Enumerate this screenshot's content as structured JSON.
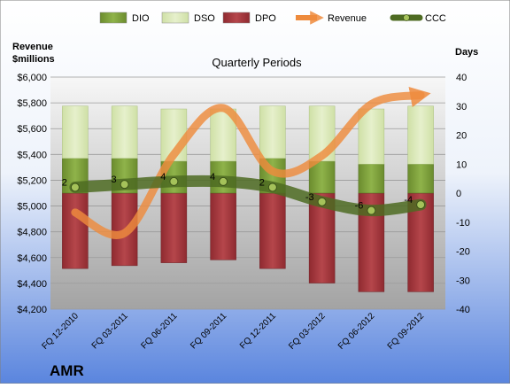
{
  "chart_data": {
    "type": "bar",
    "title": "Quarterly Periods",
    "company": "AMR",
    "left_axis_label": [
      "Revenue",
      "$millions"
    ],
    "right_axis_label": "Days",
    "left_axis": {
      "min": 4200,
      "max": 6000,
      "step": 200,
      "ticks": [
        "$4,200",
        "$4,400",
        "$4,600",
        "$4,800",
        "$5,000",
        "$5,200",
        "$5,400",
        "$5,600",
        "$5,800",
        "$6,000"
      ]
    },
    "right_axis": {
      "min": -40,
      "max": 40,
      "step": 10,
      "ticks": [
        "-40",
        "-30",
        "-20",
        "-10",
        "0",
        "10",
        "20",
        "30",
        "40"
      ]
    },
    "categories": [
      "FQ 12-2010",
      "FQ 03-2011",
      "FQ 06-2011",
      "FQ 09-2011",
      "FQ 12-2011",
      "FQ 03-2012",
      "FQ 06-2012",
      "FQ 09-2012"
    ],
    "legend": [
      {
        "name": "DIO",
        "kind": "bar",
        "color": "#7ea13a"
      },
      {
        "name": "DSO",
        "kind": "bar",
        "color": "#d8e8b4"
      },
      {
        "name": "DPO",
        "kind": "bar",
        "color": "#a3373d"
      },
      {
        "name": "Revenue",
        "kind": "arrow",
        "color": "#ee8b3d"
      },
      {
        "name": "CCC",
        "kind": "line-marker",
        "color": "#4e6b22"
      }
    ],
    "series": [
      {
        "name": "DIO",
        "axis": "right",
        "values": [
          12,
          12,
          11,
          11,
          12,
          11,
          10,
          10
        ]
      },
      {
        "name": "DSO",
        "axis": "right",
        "values": [
          18,
          18,
          18,
          18,
          18,
          19,
          19,
          20
        ]
      },
      {
        "name": "DPO",
        "axis": "right",
        "values": [
          -26,
          -25,
          -24,
          -23,
          -26,
          -31,
          -34,
          -34
        ]
      },
      {
        "name": "CCC",
        "axis": "right",
        "values": [
          2,
          3,
          4,
          4,
          2,
          -3,
          -6,
          -4
        ]
      },
      {
        "name": "Revenue",
        "axis": "left",
        "values": [
          4950,
          4790,
          5400,
          5760,
          5270,
          5390,
          5790,
          5860
        ]
      }
    ],
    "data_labels": [
      "2",
      "3",
      "4",
      "4",
      "2",
      "-3",
      "-6",
      "-4"
    ],
    "colors": {
      "background_top": "#ffffff",
      "background_bottom": "#5a85de",
      "plot_top": "#f6f6f6",
      "plot_bottom": "#a9a9a9",
      "grid": "#9a9a9a",
      "text": "#000000"
    }
  }
}
